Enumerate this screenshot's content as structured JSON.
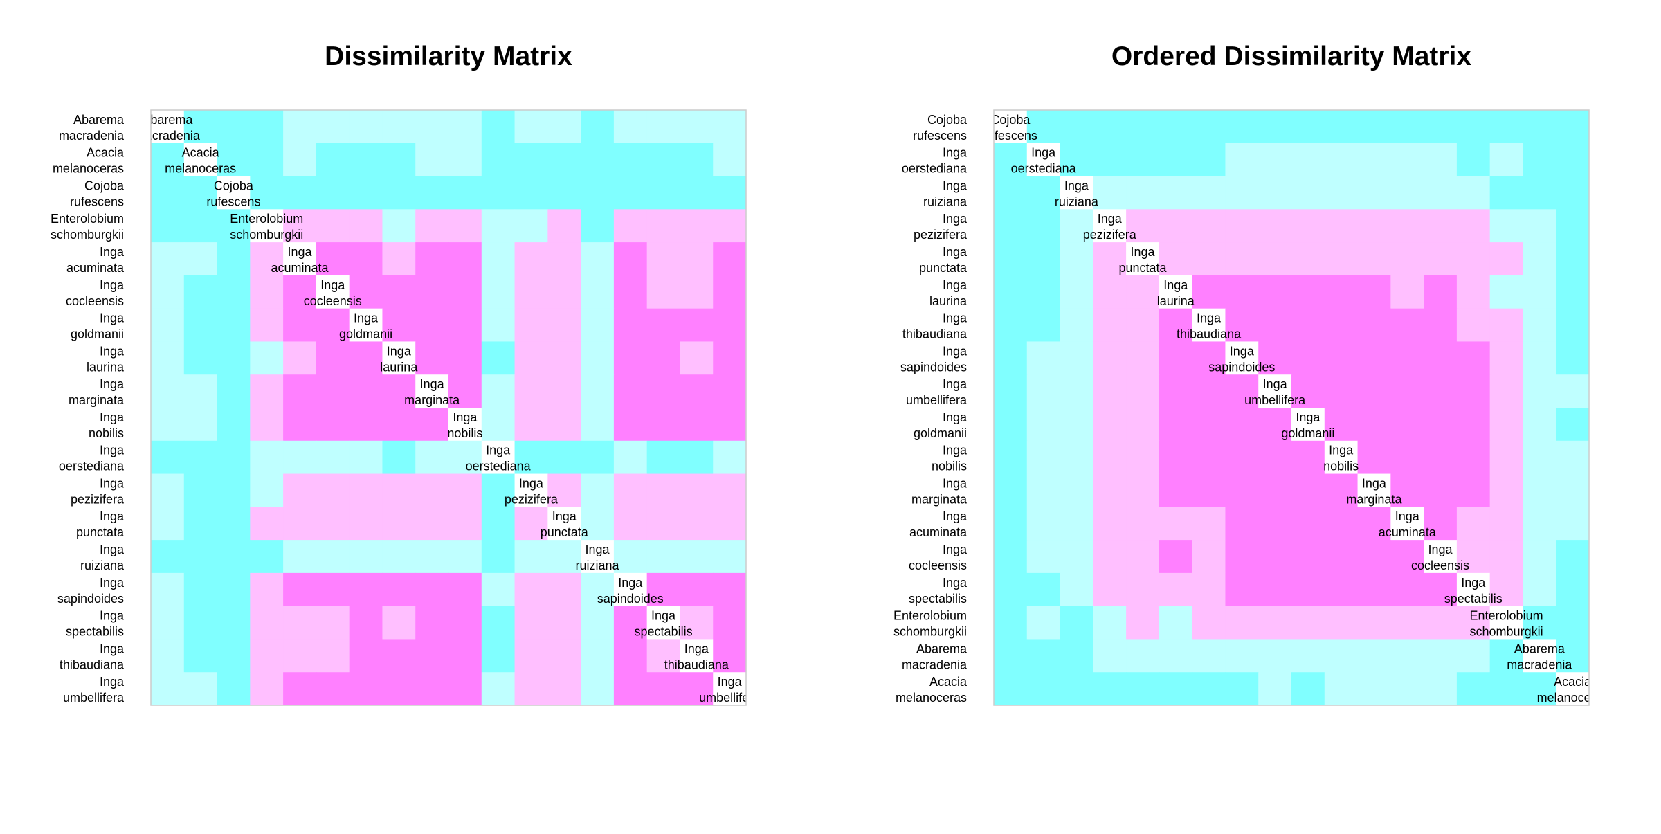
{
  "chart_data": [
    {
      "type": "heatmap",
      "title": "Dissimilarity Matrix",
      "labels": [
        "Abarema macradenia",
        "Acacia melanoceras",
        "Cojoba rufescens",
        "Enterolobium schomburgkii",
        "Inga acuminata",
        "Inga cocleensis",
        "Inga goldmanii",
        "Inga laurina",
        "Inga marginata",
        "Inga nobilis",
        "Inga oerstediana",
        "Inga pezizifera",
        "Inga punctata",
        "Inga ruiziana",
        "Inga sapindoides",
        "Inga spectabilis",
        "Inga thibaudiana",
        "Inga umbellifera"
      ],
      "matrix": [
        [
          0,
          0,
          0,
          0,
          1,
          1,
          1,
          1,
          1,
          1,
          0,
          1,
          1,
          0,
          1,
          1,
          1,
          1
        ],
        [
          0,
          0,
          0,
          0,
          1,
          0,
          0,
          0,
          1,
          1,
          0,
          0,
          0,
          0,
          0,
          0,
          0,
          1
        ],
        [
          0,
          0,
          0,
          0,
          0,
          0,
          0,
          0,
          0,
          0,
          0,
          0,
          0,
          0,
          0,
          0,
          0,
          0
        ],
        [
          0,
          0,
          0,
          0,
          2,
          2,
          2,
          1,
          2,
          2,
          1,
          1,
          2,
          0,
          2,
          2,
          2,
          2
        ],
        [
          1,
          1,
          0,
          2,
          3,
          3,
          3,
          2,
          3,
          3,
          1,
          2,
          2,
          1,
          3,
          2,
          2,
          3
        ],
        [
          1,
          0,
          0,
          2,
          3,
          3,
          3,
          3,
          3,
          3,
          1,
          2,
          2,
          1,
          3,
          2,
          2,
          3
        ],
        [
          1,
          0,
          0,
          2,
          3,
          3,
          3,
          3,
          3,
          3,
          1,
          2,
          2,
          1,
          3,
          3,
          3,
          3
        ],
        [
          1,
          0,
          0,
          1,
          2,
          3,
          3,
          3,
          3,
          3,
          0,
          2,
          2,
          1,
          3,
          3,
          2,
          3
        ],
        [
          1,
          1,
          0,
          2,
          3,
          3,
          3,
          3,
          3,
          3,
          1,
          2,
          2,
          1,
          3,
          3,
          3,
          3
        ],
        [
          1,
          1,
          0,
          2,
          3,
          3,
          3,
          3,
          3,
          3,
          1,
          2,
          2,
          1,
          3,
          3,
          3,
          3
        ],
        [
          0,
          0,
          0,
          1,
          1,
          1,
          1,
          0,
          1,
          1,
          0,
          0,
          0,
          0,
          1,
          0,
          0,
          1
        ],
        [
          1,
          0,
          0,
          1,
          2,
          2,
          2,
          2,
          2,
          2,
          0,
          2,
          2,
          1,
          2,
          2,
          2,
          2
        ],
        [
          1,
          0,
          0,
          2,
          2,
          2,
          2,
          2,
          2,
          2,
          0,
          2,
          2,
          1,
          2,
          2,
          2,
          2
        ],
        [
          0,
          0,
          0,
          0,
          1,
          1,
          1,
          1,
          1,
          1,
          0,
          1,
          1,
          0,
          1,
          1,
          1,
          1
        ],
        [
          1,
          0,
          0,
          2,
          3,
          3,
          3,
          3,
          3,
          3,
          1,
          2,
          2,
          1,
          3,
          3,
          3,
          3
        ],
        [
          1,
          0,
          0,
          2,
          2,
          2,
          3,
          2,
          3,
          3,
          0,
          2,
          2,
          1,
          3,
          3,
          2,
          3
        ],
        [
          1,
          0,
          0,
          2,
          2,
          2,
          3,
          3,
          3,
          3,
          0,
          2,
          2,
          1,
          3,
          2,
          3,
          3
        ],
        [
          1,
          1,
          0,
          2,
          3,
          3,
          3,
          3,
          3,
          3,
          1,
          2,
          2,
          1,
          3,
          3,
          3,
          3
        ]
      ]
    },
    {
      "type": "heatmap",
      "title": "Ordered Dissimilarity Matrix",
      "labels": [
        "Cojoba rufescens",
        "Inga oerstediana",
        "Inga ruiziana",
        "Inga pezizifera",
        "Inga punctata",
        "Inga laurina",
        "Inga thibaudiana",
        "Inga sapindoides",
        "Inga umbellifera",
        "Inga goldmanii",
        "Inga nobilis",
        "Inga marginata",
        "Inga acuminata",
        "Inga cocleensis",
        "Inga spectabilis",
        "Enterolobium schomburgkii",
        "Abarema macradenia",
        "Acacia melanoceras"
      ],
      "matrix": [
        [
          0,
          0,
          0,
          0,
          0,
          0,
          0,
          0,
          0,
          0,
          0,
          0,
          0,
          0,
          0,
          0,
          0,
          0
        ],
        [
          0,
          0,
          0,
          0,
          0,
          0,
          0,
          1,
          1,
          1,
          1,
          1,
          1,
          1,
          0,
          1,
          0,
          0
        ],
        [
          0,
          0,
          0,
          1,
          1,
          1,
          1,
          1,
          1,
          1,
          1,
          1,
          1,
          1,
          1,
          0,
          0,
          0
        ],
        [
          0,
          0,
          1,
          2,
          2,
          2,
          2,
          2,
          2,
          2,
          2,
          2,
          2,
          2,
          2,
          1,
          1,
          0
        ],
        [
          0,
          0,
          1,
          2,
          2,
          2,
          2,
          2,
          2,
          2,
          2,
          2,
          2,
          2,
          2,
          2,
          1,
          0
        ],
        [
          0,
          0,
          1,
          2,
          2,
          3,
          3,
          3,
          3,
          3,
          3,
          3,
          2,
          3,
          2,
          1,
          1,
          0
        ],
        [
          0,
          0,
          1,
          2,
          2,
          3,
          3,
          3,
          3,
          3,
          3,
          3,
          3,
          3,
          2,
          2,
          1,
          0
        ],
        [
          0,
          1,
          1,
          2,
          2,
          3,
          3,
          3,
          3,
          3,
          3,
          3,
          3,
          3,
          3,
          2,
          1,
          0
        ],
        [
          0,
          1,
          1,
          2,
          2,
          3,
          3,
          3,
          3,
          3,
          3,
          3,
          3,
          3,
          3,
          2,
          1,
          1
        ],
        [
          0,
          1,
          1,
          2,
          2,
          3,
          3,
          3,
          3,
          3,
          3,
          3,
          3,
          3,
          3,
          2,
          1,
          0
        ],
        [
          0,
          1,
          1,
          2,
          2,
          3,
          3,
          3,
          3,
          3,
          3,
          3,
          3,
          3,
          3,
          2,
          1,
          1
        ],
        [
          0,
          1,
          1,
          2,
          2,
          3,
          3,
          3,
          3,
          3,
          3,
          3,
          3,
          3,
          3,
          2,
          1,
          1
        ],
        [
          0,
          1,
          1,
          2,
          2,
          2,
          2,
          3,
          3,
          3,
          3,
          3,
          3,
          3,
          2,
          2,
          1,
          1
        ],
        [
          0,
          1,
          1,
          2,
          2,
          3,
          2,
          3,
          3,
          3,
          3,
          3,
          3,
          3,
          2,
          2,
          1,
          0
        ],
        [
          0,
          0,
          1,
          2,
          2,
          2,
          2,
          3,
          3,
          3,
          3,
          3,
          3,
          3,
          3,
          2,
          1,
          0
        ],
        [
          0,
          1,
          0,
          1,
          2,
          1,
          2,
          2,
          2,
          2,
          2,
          2,
          2,
          2,
          2,
          2,
          0,
          0
        ],
        [
          0,
          0,
          0,
          1,
          1,
          1,
          1,
          1,
          1,
          1,
          1,
          1,
          1,
          1,
          1,
          0,
          0,
          0
        ],
        [
          0,
          0,
          0,
          0,
          0,
          0,
          0,
          0,
          1,
          0,
          1,
          1,
          1,
          1,
          0,
          0,
          0,
          0
        ]
      ]
    }
  ],
  "palette": {
    "levels": [
      "#80ffff",
      "#bfffff",
      "#ffbfff",
      "#ff80ff"
    ],
    "diagonal": "#ffffff",
    "border": "#cccccc"
  }
}
